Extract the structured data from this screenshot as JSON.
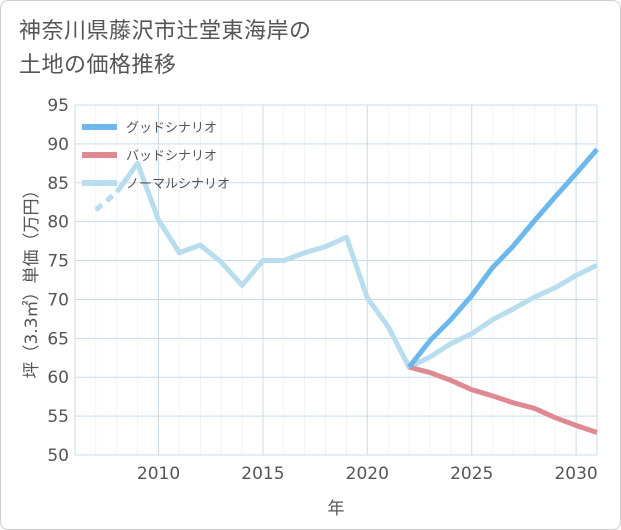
{
  "title_lines": [
    "神奈川県藤沢市辻堂東海岸の",
    "土地の価格推移"
  ],
  "colors": {
    "good": "#6cb8ec",
    "bad": "#de8a90",
    "normal": "#b7ddee",
    "grid": "#c9dcea",
    "text": "#555555"
  },
  "chart_data": {
    "type": "line",
    "title": "神奈川県藤沢市辻堂東海岸の土地の価格推移",
    "xlabel": "年",
    "ylabel": "坪（3.3㎡）単価（万円）",
    "xlim": [
      2006,
      2031
    ],
    "ylim": [
      50,
      95
    ],
    "xticks": [
      2010,
      2015,
      2020,
      2025,
      2030
    ],
    "yticks": [
      50,
      55,
      60,
      65,
      70,
      75,
      80,
      85,
      90,
      95
    ],
    "legend": {
      "position": "top-left"
    },
    "series": [
      {
        "name": "グッドシナリオ",
        "key": "good",
        "x": [
          2022,
          2023,
          2024,
          2025,
          2026,
          2027,
          2028,
          2029,
          2030,
          2031
        ],
        "values": [
          61.3,
          64.7,
          67.4,
          70.5,
          74.1,
          76.9,
          80.1,
          83.2,
          86.2,
          89.3
        ]
      },
      {
        "name": "バッドシナリオ",
        "key": "bad",
        "x": [
          2022,
          2023,
          2024,
          2025,
          2026,
          2027,
          2028,
          2029,
          2030,
          2031
        ],
        "values": [
          61.3,
          60.6,
          59.6,
          58.4,
          57.6,
          56.7,
          56.0,
          54.8,
          53.8,
          52.9
        ]
      },
      {
        "name": "ノーマルシナリオ",
        "key": "normal",
        "x": [
          2007,
          2008,
          2009,
          2010,
          2011,
          2012,
          2013,
          2014,
          2015,
          2016,
          2017,
          2018,
          2019,
          2020,
          2021,
          2022,
          2023,
          2024,
          2025,
          2026,
          2027,
          2028,
          2029,
          2030,
          2031
        ],
        "values": [
          81.5,
          83.8,
          87.5,
          80.2,
          76.0,
          77.0,
          74.8,
          71.8,
          75.0,
          75.0,
          76.0,
          76.8,
          78.0,
          70.2,
          66.5,
          61.3,
          62.6,
          64.3,
          65.6,
          67.4,
          68.8,
          70.3,
          71.5,
          73.1,
          74.4
        ]
      }
    ]
  }
}
